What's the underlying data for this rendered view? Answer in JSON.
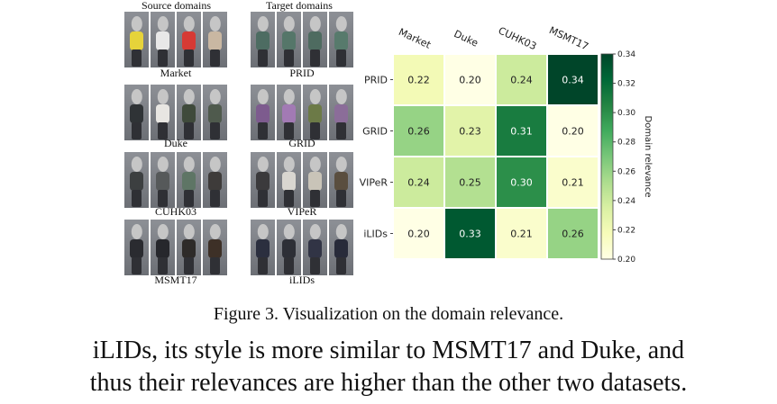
{
  "figure": {
    "source_header": "Source domains",
    "target_header": "Target domains",
    "source_domains": [
      {
        "name": "Market",
        "colors": [
          "#e6d33a",
          "#e8e8e8",
          "#d63a34",
          "#c9b7a2"
        ]
      },
      {
        "name": "Duke",
        "colors": [
          "#2f3336",
          "#e8e6e2",
          "#3f4a3b",
          "#4f5a4d"
        ]
      },
      {
        "name": "CUHK03",
        "colors": [
          "#3c3f40",
          "#56595a",
          "#5e7565",
          "#3e3b3a"
        ]
      },
      {
        "name": "MSMT17",
        "colors": [
          "#2a2b30",
          "#26272c",
          "#2e2b29",
          "#3d3027"
        ]
      }
    ],
    "target_domains": [
      {
        "name": "PRID",
        "colors": [
          "#4d6c62",
          "#557669",
          "#4e6b60",
          "#577a6c"
        ]
      },
      {
        "name": "GRID",
        "colors": [
          "#7d5b8e",
          "#a27ab4",
          "#6c7a47",
          "#8b6d99"
        ]
      },
      {
        "name": "VIPeR",
        "colors": [
          "#3b3a3c",
          "#d9d6d0",
          "#c9c4b8",
          "#5a4e3f"
        ]
      },
      {
        "name": "iLIDs",
        "colors": [
          "#2b2f3f",
          "#2d2f36",
          "#313445",
          "#282b3a"
        ]
      }
    ]
  },
  "chart_data": {
    "type": "heatmap",
    "x": [
      "Market",
      "Duke",
      "CUHK03",
      "MSMT17"
    ],
    "y": [
      "PRID",
      "GRID",
      "VIPeR",
      "iLIDs"
    ],
    "values": [
      [
        0.22,
        0.2,
        0.24,
        0.34
      ],
      [
        0.26,
        0.23,
        0.31,
        0.2
      ],
      [
        0.24,
        0.25,
        0.3,
        0.21
      ],
      [
        0.2,
        0.33,
        0.21,
        0.26
      ]
    ],
    "value_labels": [
      [
        "0.22",
        "0.20",
        "0.24",
        "0.34"
      ],
      [
        "0.26",
        "0.23",
        "0.31",
        "0.20"
      ],
      [
        "0.24",
        "0.25",
        "0.30",
        "0.21"
      ],
      [
        "0.20",
        "0.33",
        "0.21",
        "0.26"
      ]
    ],
    "colorbar_label": "Domain relevance",
    "colorbar_range": [
      0.2,
      0.34
    ],
    "colorbar_ticks": [
      "0.34",
      "0.32",
      "0.30",
      "0.28",
      "0.26",
      "0.24",
      "0.22",
      "0.20"
    ],
    "colormap": [
      "#ffffe5",
      "#f7fcb9",
      "#d9f0a3",
      "#addd8e",
      "#78c679",
      "#41ab5d",
      "#238443",
      "#006837",
      "#004529"
    ]
  },
  "caption": "Figure 3. Visualization on the domain relevance.",
  "body_text": [
    "iLIDs, its style is more similar to MSMT17 and Duke, and",
    "thus their relevances are higher than the other two datasets."
  ]
}
